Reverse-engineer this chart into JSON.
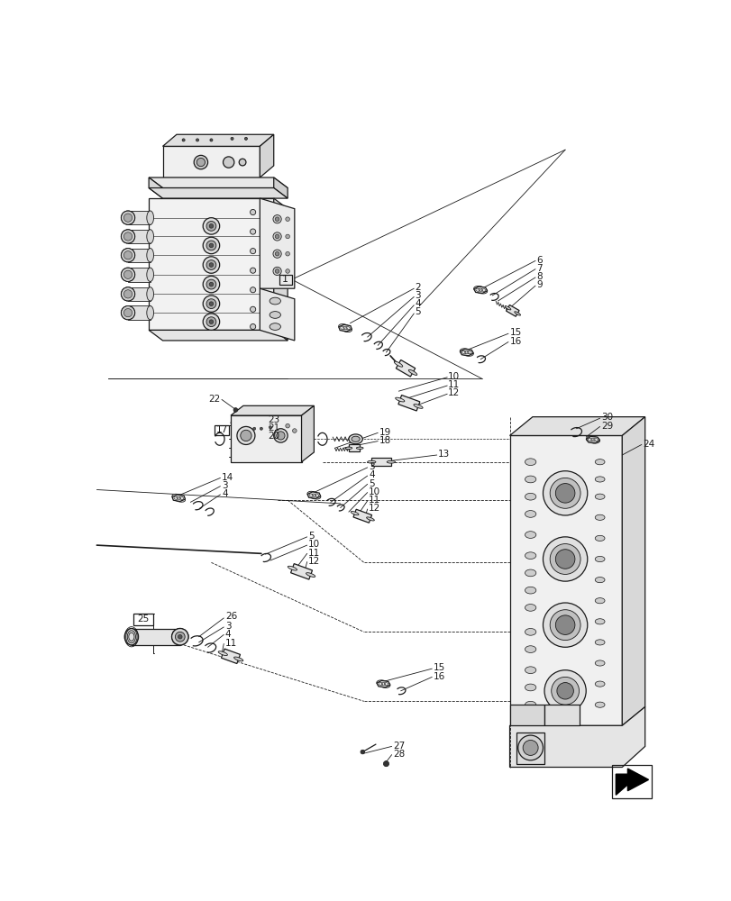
{
  "bg_color": "#ffffff",
  "lc": "#1a1a1a",
  "lw": 0.9,
  "tlw": 0.6,
  "fig_width": 8.12,
  "fig_height": 10.0,
  "dpi": 100
}
